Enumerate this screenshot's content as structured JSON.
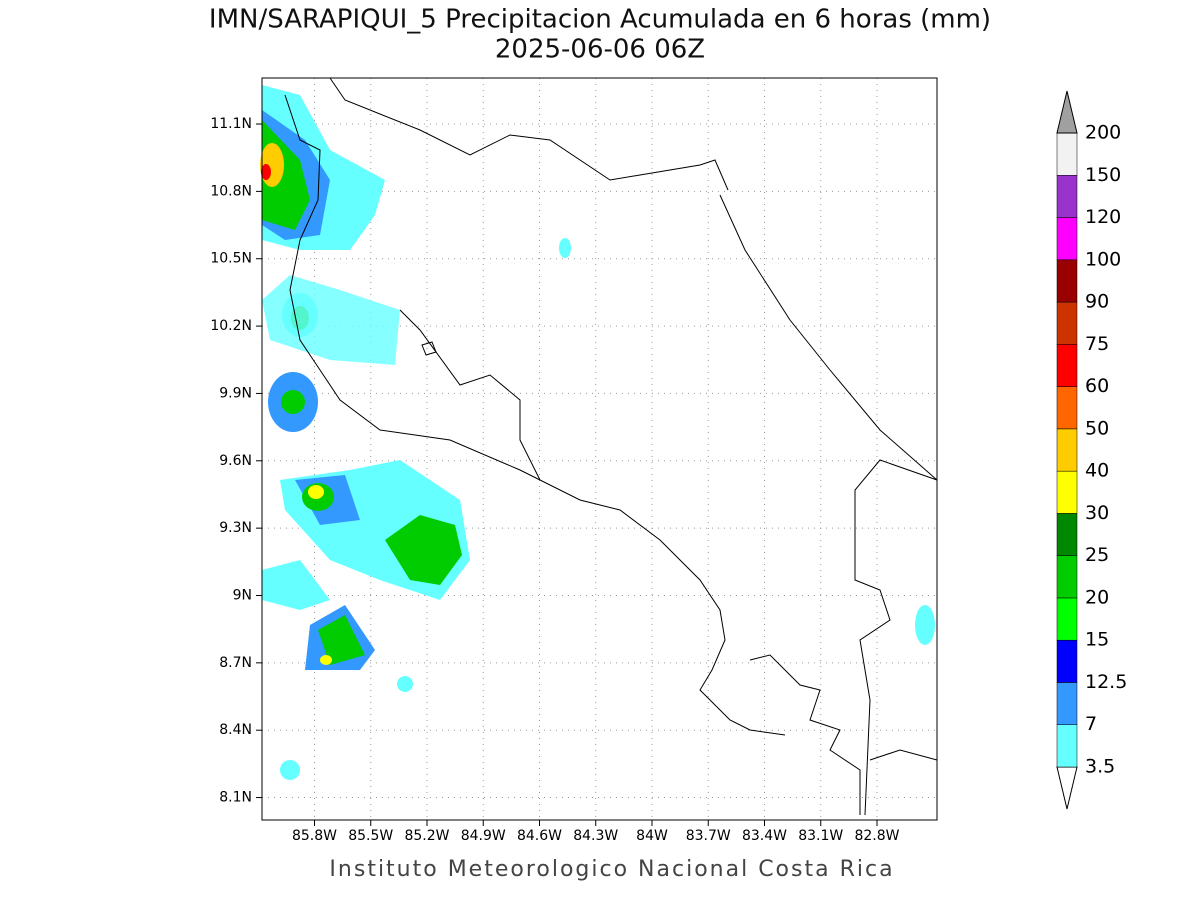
{
  "map": {
    "title": "IMN/SARAPIQUI_5 Precipitacion Acumulada en 6 horas (mm)",
    "subtitle": "2025-06-06 06Z",
    "footer": "Instituto Meteorologico Nacional Costa Rica",
    "lonlim": [
      -86.08,
      -82.48
    ],
    "latlim": [
      8.0,
      11.305
    ],
    "lat_ticks": [
      {
        "value": 11.1,
        "label": "11.1N"
      },
      {
        "value": 10.8,
        "label": "10.8N"
      },
      {
        "value": 10.5,
        "label": "10.5N"
      },
      {
        "value": 10.2,
        "label": "10.2N"
      },
      {
        "value": 9.9,
        "label": "9.9N"
      },
      {
        "value": 9.6,
        "label": "9.6N"
      },
      {
        "value": 9.3,
        "label": "9.3N"
      },
      {
        "value": 9,
        "label": "9N"
      },
      {
        "value": 8.7,
        "label": "8.7N"
      },
      {
        "value": 8.4,
        "label": "8.4N"
      },
      {
        "value": 8.1,
        "label": "8.1N"
      }
    ],
    "lon_ticks": [
      {
        "value": -85.8,
        "label": "85.8W"
      },
      {
        "value": -85.5,
        "label": "85.5W"
      },
      {
        "value": -85.2,
        "label": "85.2W"
      },
      {
        "value": -84.9,
        "label": "84.9W"
      },
      {
        "value": -84.6,
        "label": "84.6W"
      },
      {
        "value": -84.3,
        "label": "84.3W"
      },
      {
        "value": -84,
        "label": "84W"
      },
      {
        "value": -83.7,
        "label": "83.7W"
      },
      {
        "value": -83.4,
        "label": "83.4W"
      },
      {
        "value": -83.1,
        "label": "83.1W"
      },
      {
        "value": -82.8,
        "label": "82.8W"
      }
    ],
    "grid": true,
    "colorbar": {
      "levels": [
        3.5,
        7,
        12.5,
        15,
        20,
        25,
        30,
        40,
        50,
        60,
        75,
        90,
        100,
        120,
        150,
        200
      ],
      "colors": [
        "#ffffff",
        "#66ffff",
        "#3399ff",
        "#0000ff",
        "#00ff00",
        "#00cc00",
        "#008800",
        "#ffff00",
        "#ffcc00",
        "#ff6600",
        "#ff0000",
        "#cc3300",
        "#990000",
        "#ff00ff",
        "#9933cc",
        "#f2f2f2",
        "#a0a0a0"
      ]
    }
  }
}
